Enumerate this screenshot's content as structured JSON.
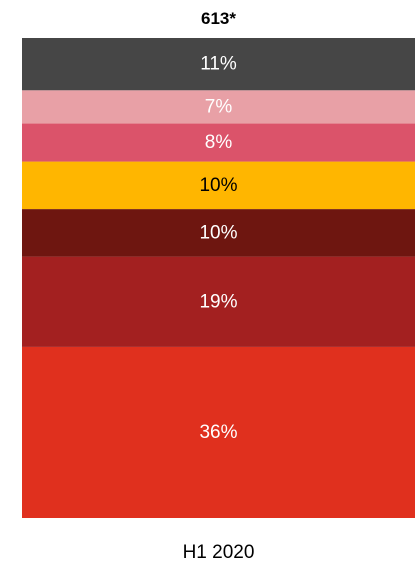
{
  "chart_data": {
    "type": "bar",
    "stacked": true,
    "categories": [
      "H1 2020"
    ],
    "total_label": "613*",
    "series": [
      {
        "label": "36%",
        "value": 36,
        "color": "#e0301e"
      },
      {
        "label": "19%",
        "value": 19,
        "color": "#a32020"
      },
      {
        "label": "10%",
        "value": 10,
        "color": "#6e1610"
      },
      {
        "label": "10%",
        "value": 10,
        "color": "#ffb600"
      },
      {
        "label": "8%",
        "value": 8,
        "color": "#db536a"
      },
      {
        "label": "7%",
        "value": 7,
        "color": "#e8a0a6"
      },
      {
        "label": "11%",
        "value": 11,
        "color": "#464646"
      }
    ],
    "legend": "none",
    "grid": false
  }
}
